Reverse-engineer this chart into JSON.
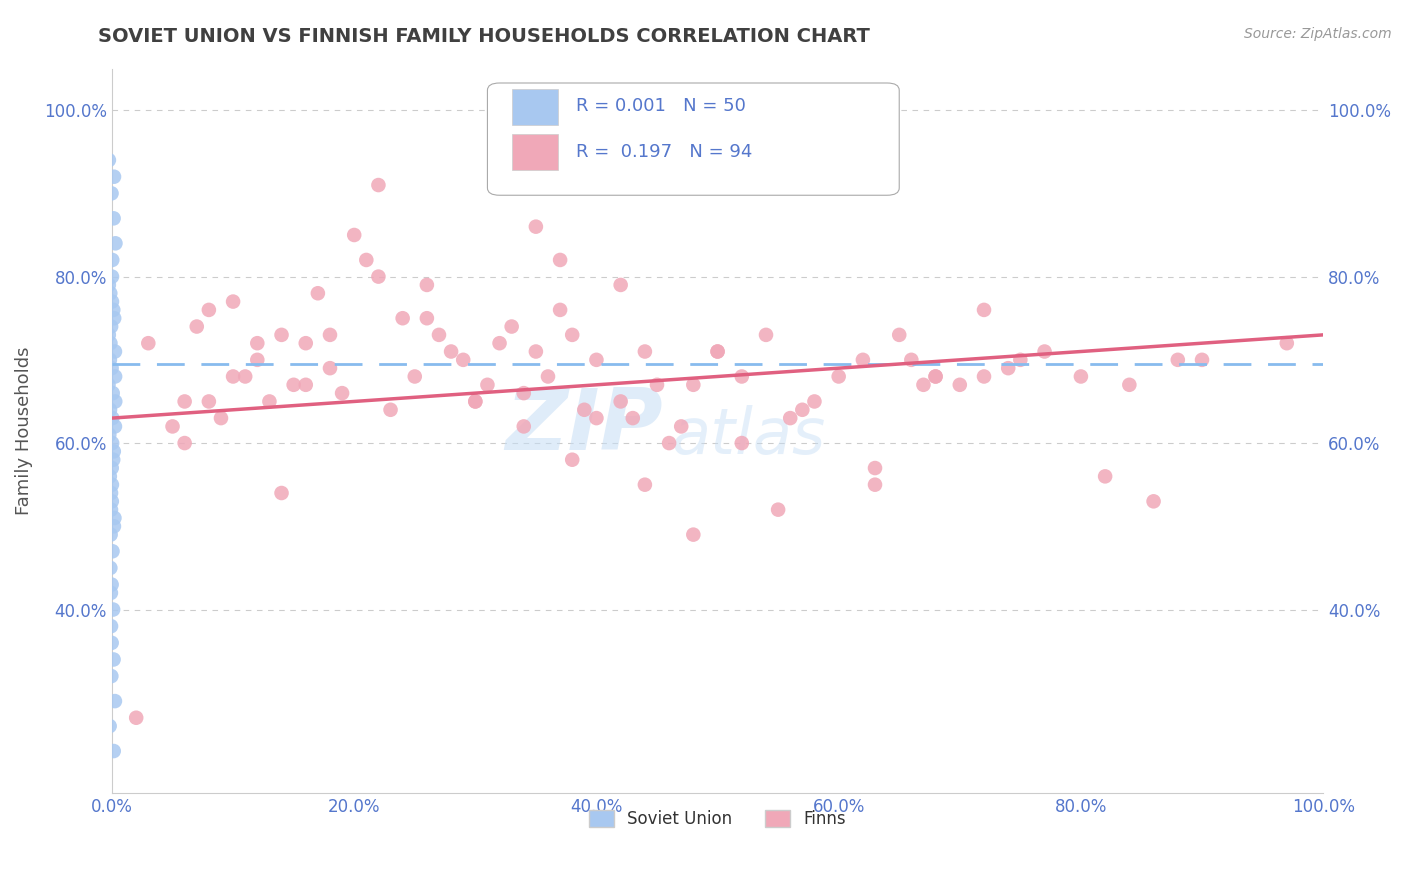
{
  "title": "SOVIET UNION VS FINNISH FAMILY HOUSEHOLDS CORRELATION CHART",
  "source": "Source: ZipAtlas.com",
  "ylabel": "Family Households",
  "legend_bottom": [
    "Soviet Union",
    "Finns"
  ],
  "soviet_R": 0.001,
  "soviet_N": 50,
  "finns_R": 0.197,
  "finns_N": 94,
  "soviet_color": "#a8c8f0",
  "finns_color": "#f0a8b8",
  "trendline_soviet_color": "#88bbee",
  "trendline_finns_color": "#e06080",
  "background_color": "#ffffff",
  "grid_color": "#cccccc",
  "title_color": "#404040",
  "tick_color": "#5577cc",
  "xlim": [
    0,
    1
  ],
  "ylim": [
    0.18,
    1.05
  ],
  "xticks": [
    0,
    0.2,
    0.4,
    0.6,
    0.8,
    1.0
  ],
  "yticks": [
    0.4,
    0.6,
    0.8,
    1.0
  ],
  "right_yticks": [
    0.4,
    0.6,
    0.8,
    1.0
  ],
  "soviet_x": [
    0,
    0,
    0,
    0,
    0,
    0,
    0,
    0,
    0,
    0,
    0,
    0,
    0,
    0,
    0,
    0,
    0,
    0,
    0,
    0,
    0,
    0,
    0,
    0,
    0,
    0,
    0,
    0,
    0,
    0,
    0,
    0,
    0,
    0,
    0,
    0,
    0,
    0,
    0,
    0,
    0,
    0,
    0,
    0,
    0,
    0,
    0,
    0,
    0,
    0
  ],
  "soviet_y": [
    0.94,
    0.92,
    0.9,
    0.87,
    0.84,
    0.82,
    0.8,
    0.79,
    0.78,
    0.77,
    0.76,
    0.75,
    0.74,
    0.73,
    0.72,
    0.71,
    0.7,
    0.69,
    0.68,
    0.67,
    0.66,
    0.65,
    0.64,
    0.63,
    0.62,
    0.61,
    0.6,
    0.59,
    0.58,
    0.57,
    0.56,
    0.55,
    0.54,
    0.53,
    0.52,
    0.51,
    0.5,
    0.49,
    0.47,
    0.45,
    0.43,
    0.42,
    0.4,
    0.38,
    0.36,
    0.34,
    0.32,
    0.29,
    0.26,
    0.23
  ],
  "finns_x": [
    0.02,
    0.03,
    0.05,
    0.06,
    0.07,
    0.08,
    0.09,
    0.1,
    0.11,
    0.12,
    0.13,
    0.14,
    0.15,
    0.16,
    0.17,
    0.18,
    0.19,
    0.2,
    0.21,
    0.22,
    0.23,
    0.24,
    0.25,
    0.26,
    0.27,
    0.28,
    0.29,
    0.3,
    0.31,
    0.32,
    0.33,
    0.34,
    0.35,
    0.36,
    0.37,
    0.38,
    0.39,
    0.4,
    0.42,
    0.43,
    0.44,
    0.45,
    0.46,
    0.47,
    0.48,
    0.5,
    0.52,
    0.54,
    0.55,
    0.56,
    0.57,
    0.58,
    0.6,
    0.62,
    0.63,
    0.65,
    0.66,
    0.67,
    0.68,
    0.7,
    0.72,
    0.74,
    0.75,
    0.77,
    0.8,
    0.82,
    0.84,
    0.86,
    0.88,
    0.9,
    0.06,
    0.08,
    0.1,
    0.12,
    0.14,
    0.16,
    0.18,
    0.22,
    0.26,
    0.3,
    0.34,
    0.38,
    0.4,
    0.44,
    0.48,
    0.52,
    0.35,
    0.37,
    0.42,
    0.5,
    0.63,
    0.68,
    0.72,
    0.97
  ],
  "finns_y": [
    0.27,
    0.72,
    0.62,
    0.65,
    0.74,
    0.76,
    0.63,
    0.77,
    0.68,
    0.7,
    0.65,
    0.73,
    0.67,
    0.72,
    0.78,
    0.69,
    0.66,
    0.85,
    0.82,
    0.8,
    0.64,
    0.75,
    0.68,
    0.79,
    0.73,
    0.71,
    0.7,
    0.65,
    0.67,
    0.72,
    0.74,
    0.66,
    0.71,
    0.68,
    0.76,
    0.73,
    0.64,
    0.7,
    0.65,
    0.63,
    0.71,
    0.67,
    0.6,
    0.62,
    0.67,
    0.71,
    0.68,
    0.73,
    0.52,
    0.63,
    0.64,
    0.65,
    0.68,
    0.7,
    0.55,
    0.73,
    0.7,
    0.67,
    0.68,
    0.67,
    0.68,
    0.69,
    0.7,
    0.71,
    0.68,
    0.56,
    0.67,
    0.53,
    0.7,
    0.7,
    0.6,
    0.65,
    0.68,
    0.72,
    0.54,
    0.67,
    0.73,
    0.91,
    0.75,
    0.65,
    0.62,
    0.58,
    0.63,
    0.55,
    0.49,
    0.6,
    0.86,
    0.82,
    0.79,
    0.71,
    0.57,
    0.68,
    0.76,
    0.72
  ],
  "finns_trendline": [
    0.63,
    0.73
  ],
  "soviet_trendline": [
    0.695,
    0.695
  ],
  "watermark_zip_color": "#c8ddf0",
  "watermark_atlas_color": "#c8ddf0"
}
